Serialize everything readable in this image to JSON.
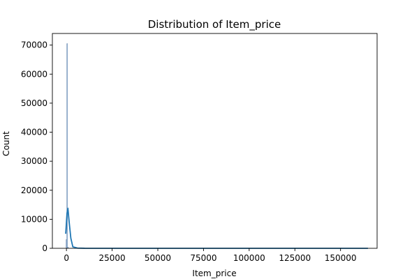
{
  "chart_data": {
    "type": "bar",
    "title": "Distribution of Item_price",
    "xlabel": "Item_price",
    "ylabel": "Count",
    "xlim": [
      -7700,
      170000
    ],
    "ylim": [
      0,
      74000
    ],
    "xticks": [
      0,
      25000,
      50000,
      75000,
      100000,
      125000,
      150000
    ],
    "xtick_labels": [
      "0",
      "25000",
      "50000",
      "75000",
      "100000",
      "125000",
      "150000"
    ],
    "yticks": [
      0,
      10000,
      20000,
      30000,
      40000,
      50000,
      60000,
      70000
    ],
    "ytick_labels": [
      "0",
      "10000",
      "20000",
      "30000",
      "40000",
      "50000",
      "60000",
      "70000"
    ],
    "grid": false,
    "series": [
      {
        "kind": "histogram",
        "bars": [
          {
            "x0": -200,
            "x1": 200,
            "count": 3000
          },
          {
            "x0": 200,
            "x1": 600,
            "count": 70500
          },
          {
            "x0": 600,
            "x1": 1000,
            "count": 400
          },
          {
            "x0": 1000,
            "x1": 165000,
            "count": 0
          }
        ]
      },
      {
        "kind": "kde",
        "x": [
          -400,
          300,
          800,
          1500,
          2400,
          3500,
          6000,
          10000,
          20000,
          40000,
          80000,
          120000,
          165000
        ],
        "y": [
          5000,
          12000,
          13800,
          9000,
          3500,
          500,
          80,
          10,
          0,
          0,
          0,
          0,
          0
        ]
      }
    ],
    "colors": {
      "bar_fill": "#a1c0e0",
      "bar_edge": "#6f8fb5",
      "kde_line": "#1f77b4"
    }
  }
}
